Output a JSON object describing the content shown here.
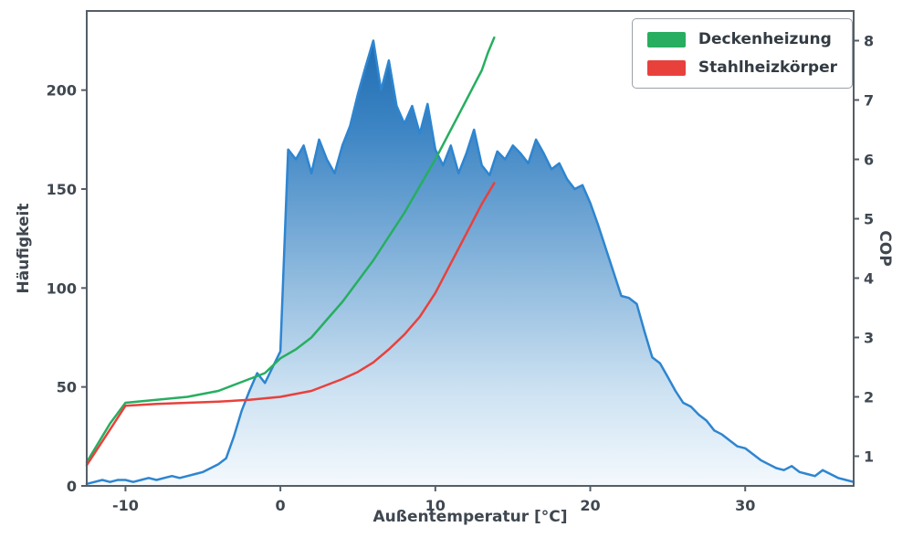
{
  "chart_data": {
    "type": "area+line",
    "title": "",
    "xlabel": "Außentemperatur [°C]",
    "ylabel_left": "Häufigkeit",
    "ylabel_right": "COP",
    "xlim": [
      -12.5,
      37
    ],
    "ylim_left": [
      0,
      240
    ],
    "ylim_right": [
      0.5,
      8.5
    ],
    "xticks": [
      -10,
      0,
      10,
      20,
      30
    ],
    "yticks_left": [
      0,
      50,
      100,
      150,
      200
    ],
    "yticks_right": [
      1,
      2,
      3,
      4,
      5,
      6,
      7,
      8
    ],
    "grid": false,
    "legend_position": "top-right",
    "histogram": {
      "name": "Häufigkeit",
      "axis": "left",
      "line_color": "#2e85d0",
      "fill_stops": [
        {
          "offset": 0.0,
          "color": "#1464ab"
        },
        {
          "offset": 0.25,
          "color": "#3d85c4"
        },
        {
          "offset": 0.55,
          "color": "#8cb8dd"
        },
        {
          "offset": 0.8,
          "color": "#cde2f2"
        },
        {
          "offset": 1.0,
          "color": "#f4f9fd"
        }
      ],
      "x_start": -12.5,
      "x_step": 0.5,
      "y": [
        1,
        2,
        3,
        2,
        3,
        3,
        2,
        3,
        4,
        3,
        4,
        5,
        4,
        5,
        6,
        7,
        9,
        11,
        14,
        25,
        38,
        48,
        57,
        52,
        60,
        68,
        170,
        165,
        172,
        158,
        175,
        165,
        158,
        172,
        182,
        198,
        212,
        225,
        200,
        215,
        192,
        183,
        192,
        178,
        193,
        170,
        162,
        172,
        158,
        168,
        180,
        162,
        157,
        169,
        165,
        172,
        168,
        163,
        175,
        168,
        160,
        163,
        155,
        150,
        152,
        143,
        132,
        120,
        108,
        96,
        95,
        92,
        78,
        65,
        62,
        55,
        48,
        42,
        40,
        36,
        33,
        28,
        26,
        23,
        20,
        19,
        16,
        13,
        11,
        9,
        8,
        10,
        7,
        6,
        5,
        8,
        6,
        4,
        3,
        2
      ]
    },
    "series": [
      {
        "name": "Deckenheizung",
        "color": "#27ae60",
        "axis": "right",
        "x": [
          -12.5,
          -11,
          -10,
          -8,
          -6,
          -4,
          -2,
          -1,
          0,
          1,
          2,
          3,
          4,
          5,
          6,
          7,
          8,
          9,
          10,
          10.5,
          11,
          11.5,
          12,
          12.5,
          13,
          13.4,
          13.8
        ],
        "y": [
          0.9,
          1.55,
          1.9,
          1.95,
          2.0,
          2.1,
          2.3,
          2.4,
          2.65,
          2.8,
          3.0,
          3.3,
          3.6,
          3.95,
          4.3,
          4.7,
          5.1,
          5.55,
          6.0,
          6.25,
          6.5,
          6.75,
          7.0,
          7.25,
          7.5,
          7.8,
          8.05
        ]
      },
      {
        "name": "Stahlheizkörper",
        "color": "#e8413c",
        "axis": "right",
        "x": [
          -12.5,
          -11,
          -10,
          -8,
          -6,
          -4,
          -2,
          0,
          2,
          4,
          5,
          6,
          7,
          8,
          9,
          10,
          11,
          12,
          13,
          13.8
        ],
        "y": [
          0.85,
          1.45,
          1.85,
          1.88,
          1.9,
          1.92,
          1.95,
          2.0,
          2.1,
          2.3,
          2.42,
          2.58,
          2.8,
          3.05,
          3.35,
          3.75,
          4.25,
          4.75,
          5.25,
          5.6
        ]
      }
    ],
    "colors": {
      "text": "#3f4750",
      "spine": "#555e66",
      "background": "#ffffff",
      "legend_border": "#9aa1a9"
    }
  }
}
